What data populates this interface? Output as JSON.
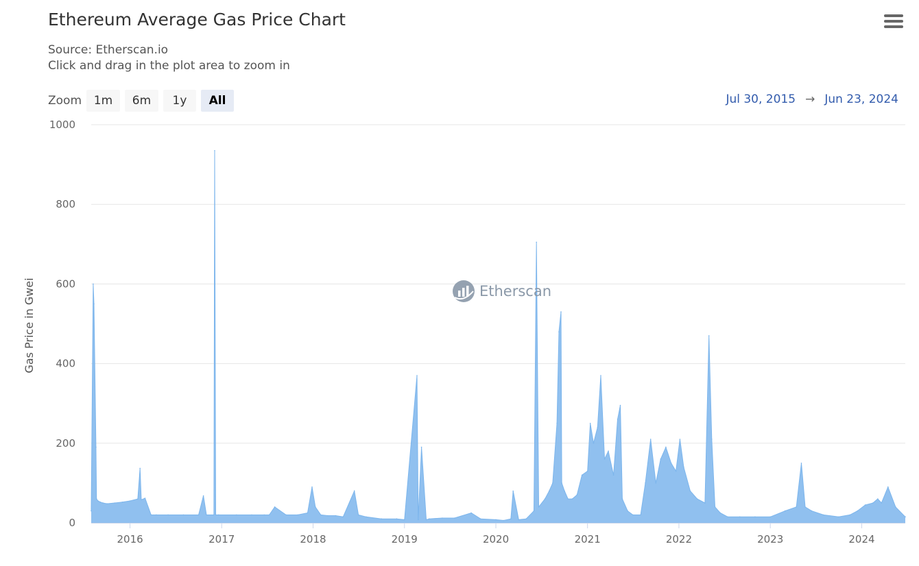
{
  "header": {
    "title": "Ethereum Average Gas Price Chart",
    "source": "Source: Etherscan.io",
    "hint": "Click and drag in the plot area to zoom in"
  },
  "menu": {
    "icon": "hamburger-menu-icon"
  },
  "range_selector": {
    "label": "Zoom",
    "buttons": [
      {
        "label": "1m",
        "active": false
      },
      {
        "label": "6m",
        "active": false
      },
      {
        "label": "1y",
        "active": false
      },
      {
        "label": "All",
        "active": true
      }
    ],
    "from": "Jul 30, 2015",
    "arrow": "→",
    "to": "Jun 23, 2024"
  },
  "watermark": {
    "text": "Etherscan",
    "icon": "etherscan-logo-icon"
  },
  "colors": {
    "series": "#7cb5ec",
    "grid": "#e6e6e6",
    "active_button": "#e6ebf5",
    "date_text": "#335cad"
  },
  "chart_data": {
    "type": "area",
    "title": "Ethereum Average Gas Price Chart",
    "subtitle": "Source: Etherscan.io",
    "xlabel": "",
    "ylabel": "Gas Price in Gwei",
    "xlim": [
      "2015-07-30",
      "2024-06-23"
    ],
    "ylim": [
      0,
      1000
    ],
    "yticks": [
      0,
      200,
      400,
      600,
      800,
      1000
    ],
    "xticks": [
      "2016",
      "2017",
      "2018",
      "2019",
      "2020",
      "2021",
      "2022",
      "2023",
      "2024"
    ],
    "grid": true,
    "legend": "none",
    "series": [
      {
        "name": "",
        "x": [
          "2015-07-30",
          "2015-08-07",
          "2015-08-10",
          "2015-08-18",
          "2015-08-20",
          "2015-08-26",
          "2015-09-05",
          "2015-09-15",
          "2015-10-01",
          "2015-11-01",
          "2015-12-01",
          "2016-01-01",
          "2016-02-01",
          "2016-02-10",
          "2016-02-15",
          "2016-03-01",
          "2016-03-25",
          "2016-04-15",
          "2016-06-01",
          "2016-08-01",
          "2016-10-01",
          "2016-10-20",
          "2016-11-01",
          "2016-12-01",
          "2016-12-04",
          "2016-12-08",
          "2016-12-20",
          "2017-03-01",
          "2017-05-01",
          "2017-06-20",
          "2017-07-10",
          "2017-08-01",
          "2017-09-15",
          "2017-11-01",
          "2017-12-10",
          "2017-12-28",
          "2018-01-10",
          "2018-02-01",
          "2018-03-01",
          "2018-04-01",
          "2018-05-01",
          "2018-06-15",
          "2018-07-01",
          "2018-08-01",
          "2018-10-01",
          "2018-12-01",
          "2019-01-01",
          "2019-02-20",
          "2019-02-25",
          "2019-03-10",
          "2019-03-29",
          "2019-04-10",
          "2019-06-01",
          "2019-07-20",
          "2019-09-25",
          "2019-11-01",
          "2020-01-01",
          "2020-02-01",
          "2020-03-01",
          "2020-03-10",
          "2020-04-01",
          "2020-05-01",
          "2020-06-01",
          "2020-06-11",
          "2020-06-20",
          "2020-07-15",
          "2020-08-01",
          "2020-08-15",
          "2020-09-01",
          "2020-09-09",
          "2020-09-17",
          "2020-09-20",
          "2020-10-01",
          "2020-10-15",
          "2020-11-01",
          "2020-11-20",
          "2020-12-10",
          "2021-01-01",
          "2021-01-12",
          "2021-01-25",
          "2021-02-10",
          "2021-02-23",
          "2021-03-10",
          "2021-03-25",
          "2021-04-15",
          "2021-05-01",
          "2021-05-12",
          "2021-05-20",
          "2021-06-10",
          "2021-07-01",
          "2021-08-01",
          "2021-08-20",
          "2021-09-10",
          "2021-10-01",
          "2021-10-20",
          "2021-11-10",
          "2021-12-01",
          "2021-12-20",
          "2022-01-05",
          "2022-01-20",
          "2022-02-15",
          "2022-03-15",
          "2022-04-15",
          "2022-05-01",
          "2022-05-12",
          "2022-05-25",
          "2022-06-15",
          "2022-07-15",
          "2022-09-01",
          "2022-11-01",
          "2023-01-01",
          "2023-03-01",
          "2023-04-15",
          "2023-05-05",
          "2023-05-20",
          "2023-06-15",
          "2023-08-01",
          "2023-10-01",
          "2023-11-15",
          "2023-12-15",
          "2024-01-15",
          "2024-02-15",
          "2024-03-05",
          "2024-03-20",
          "2024-04-15",
          "2024-05-15",
          "2024-06-23"
        ],
        "values": [
          30,
          600,
          550,
          190,
          60,
          55,
          52,
          50,
          48,
          50,
          52,
          55,
          60,
          137,
          58,
          62,
          20,
          20,
          20,
          20,
          20,
          68,
          20,
          20,
          935,
          20,
          20,
          20,
          20,
          20,
          20,
          40,
          20,
          20,
          25,
          90,
          40,
          20,
          18,
          18,
          15,
          80,
          20,
          15,
          10,
          10,
          8,
          370,
          8,
          190,
          8,
          10,
          12,
          12,
          25,
          10,
          8,
          6,
          10,
          80,
          8,
          10,
          30,
          705,
          40,
          60,
          80,
          100,
          250,
          480,
          530,
          100,
          80,
          60,
          60,
          70,
          120,
          130,
          250,
          200,
          240,
          370,
          160,
          180,
          120,
          260,
          295,
          60,
          30,
          20,
          20,
          100,
          210,
          100,
          160,
          190,
          150,
          130,
          210,
          140,
          80,
          60,
          50,
          470,
          210,
          40,
          25,
          15,
          15,
          15,
          15,
          30,
          40,
          150,
          40,
          30,
          20,
          15,
          20,
          30,
          45,
          50,
          60,
          50,
          90,
          40,
          15
        ]
      }
    ]
  }
}
